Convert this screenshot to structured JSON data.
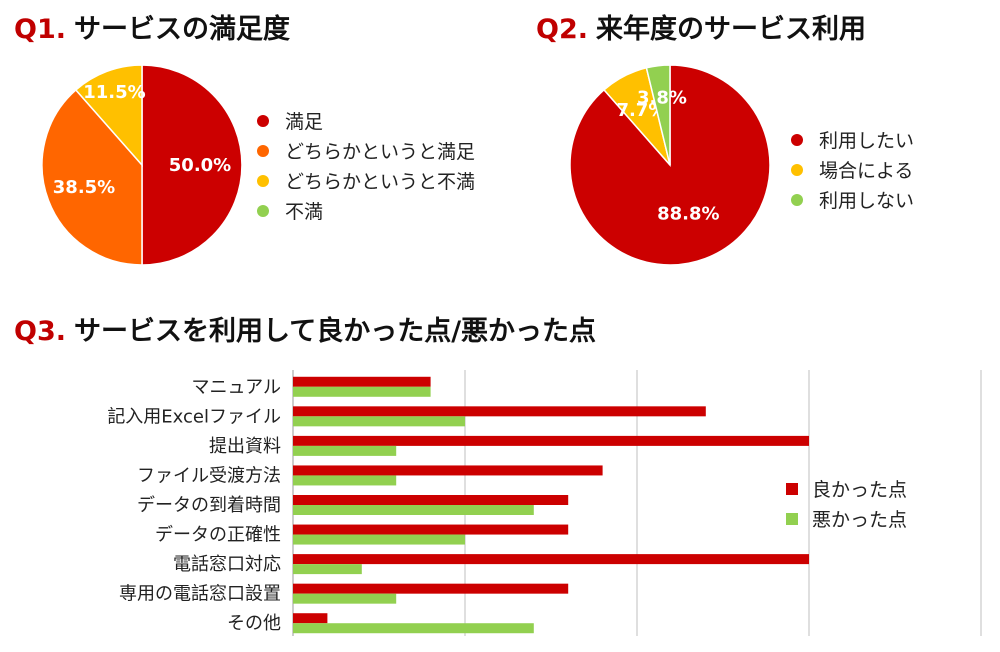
{
  "q1": {
    "num": "Q1.",
    "title": "サービスの満足度",
    "chart_data": {
      "type": "pie",
      "labels": [
        "満足",
        "どちらかというと満足",
        "どちらかというと不満",
        "不満"
      ],
      "values": [
        50.0,
        38.5,
        11.5,
        0.0
      ],
      "value_labels": [
        "50.0%",
        "38.5%",
        "11.5%",
        ""
      ],
      "colors": [
        "#cc0000",
        "#ff6600",
        "#ffc000",
        "#92d050"
      ],
      "legend_position": "right"
    }
  },
  "q2": {
    "num": "Q2.",
    "title": "来年度のサービス利用",
    "chart_data": {
      "type": "pie",
      "labels": [
        "利用したい",
        "場合による",
        "利用しない"
      ],
      "values": [
        88.8,
        7.7,
        3.8
      ],
      "value_labels": [
        "88.8%",
        "7.7%",
        "3.8%"
      ],
      "colors": [
        "#cc0000",
        "#ffc000",
        "#92d050"
      ],
      "legend_position": "right"
    }
  },
  "q3": {
    "num": "Q3.",
    "title": "サービスを利用して良かった点/悪かった点",
    "chart_data": {
      "type": "bar",
      "orientation": "horizontal",
      "categories": [
        "マニュアル",
        "記入用Excelファイル",
        "提出資料",
        "ファイル受渡方法",
        "データの到着時間",
        "データの正確性",
        "電話窓口対応",
        "専用の電話窓口設置",
        "その他"
      ],
      "series": [
        {
          "name": "良かった点",
          "color": "#cc0000",
          "values": [
            8,
            24,
            30,
            18,
            16,
            16,
            30,
            16,
            2
          ]
        },
        {
          "name": "悪かった点",
          "color": "#92d050",
          "values": [
            8,
            10,
            6,
            6,
            14,
            10,
            4,
            6,
            14
          ]
        }
      ],
      "xlim": [
        0,
        40
      ],
      "gridlines": true,
      "legend_position": "right"
    }
  }
}
